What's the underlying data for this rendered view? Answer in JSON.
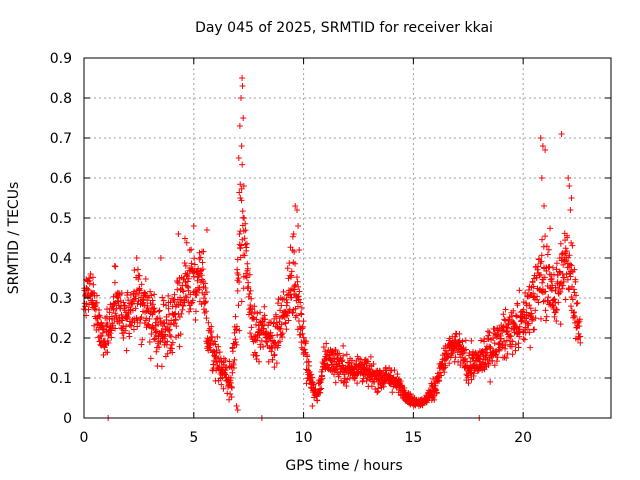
{
  "chart_data": {
    "type": "scatter",
    "title": "Day 045 of 2025, SRMTID for receiver kkai",
    "xlabel": "GPS time / hours",
    "ylabel": "SRMTID / TECUs",
    "xlim": [
      0,
      24
    ],
    "ylim": [
      0,
      0.9
    ],
    "xticks": [
      0,
      5,
      10,
      15,
      20
    ],
    "yticks": [
      0,
      0.1,
      0.2,
      0.3,
      0.4,
      0.5,
      0.6,
      0.7,
      0.8,
      0.9
    ],
    "xtick_labels": [
      "0",
      "5",
      "10",
      "15",
      "20"
    ],
    "ytick_labels": [
      "0",
      "0.1",
      "0.2",
      "0.3",
      "0.4",
      "0.5",
      "0.6",
      "0.7",
      "0.8",
      "0.9"
    ],
    "grid": true,
    "marker": "plus",
    "color": "#ff0000",
    "trend": [
      [
        0.0,
        0.3,
        0.04
      ],
      [
        0.3,
        0.32,
        0.05
      ],
      [
        0.6,
        0.26,
        0.06
      ],
      [
        0.9,
        0.19,
        0.04
      ],
      [
        1.2,
        0.24,
        0.06
      ],
      [
        1.5,
        0.3,
        0.07
      ],
      [
        1.8,
        0.24,
        0.07
      ],
      [
        2.1,
        0.26,
        0.07
      ],
      [
        2.4,
        0.3,
        0.08
      ],
      [
        2.8,
        0.28,
        0.08
      ],
      [
        3.2,
        0.22,
        0.07
      ],
      [
        3.6,
        0.22,
        0.07
      ],
      [
        4.0,
        0.24,
        0.08
      ],
      [
        4.3,
        0.3,
        0.1
      ],
      [
        4.7,
        0.32,
        0.09
      ],
      [
        5.0,
        0.34,
        0.1
      ],
      [
        5.4,
        0.34,
        0.09
      ],
      [
        5.7,
        0.2,
        0.07
      ],
      [
        6.0,
        0.15,
        0.05
      ],
      [
        6.3,
        0.12,
        0.04
      ],
      [
        6.6,
        0.1,
        0.05
      ],
      [
        6.9,
        0.16,
        0.08
      ],
      [
        7.1,
        0.5,
        0.2
      ],
      [
        7.3,
        0.42,
        0.15
      ],
      [
        7.5,
        0.3,
        0.1
      ],
      [
        7.8,
        0.2,
        0.06
      ],
      [
        8.2,
        0.22,
        0.06
      ],
      [
        8.6,
        0.2,
        0.06
      ],
      [
        9.0,
        0.24,
        0.07
      ],
      [
        9.3,
        0.3,
        0.08
      ],
      [
        9.6,
        0.36,
        0.12
      ],
      [
        9.9,
        0.24,
        0.08
      ],
      [
        10.2,
        0.12,
        0.04
      ],
      [
        10.6,
        0.05,
        0.02
      ],
      [
        11.0,
        0.15,
        0.04
      ],
      [
        11.5,
        0.14,
        0.04
      ],
      [
        12.0,
        0.12,
        0.04
      ],
      [
        12.5,
        0.13,
        0.04
      ],
      [
        13.0,
        0.11,
        0.03
      ],
      [
        13.5,
        0.1,
        0.03
      ],
      [
        14.0,
        0.1,
        0.03
      ],
      [
        14.5,
        0.07,
        0.02
      ],
      [
        15.0,
        0.04,
        0.01
      ],
      [
        15.5,
        0.04,
        0.01
      ],
      [
        16.0,
        0.08,
        0.03
      ],
      [
        16.5,
        0.16,
        0.04
      ],
      [
        17.0,
        0.18,
        0.04
      ],
      [
        17.5,
        0.13,
        0.04
      ],
      [
        18.0,
        0.14,
        0.04
      ],
      [
        18.5,
        0.17,
        0.05
      ],
      [
        19.0,
        0.2,
        0.05
      ],
      [
        19.5,
        0.22,
        0.06
      ],
      [
        20.0,
        0.24,
        0.06
      ],
      [
        20.3,
        0.28,
        0.08
      ],
      [
        20.6,
        0.32,
        0.09
      ],
      [
        20.9,
        0.36,
        0.1
      ],
      [
        21.2,
        0.34,
        0.1
      ],
      [
        21.5,
        0.3,
        0.1
      ],
      [
        21.8,
        0.36,
        0.1
      ],
      [
        22.1,
        0.4,
        0.12
      ],
      [
        22.4,
        0.28,
        0.08
      ],
      [
        22.6,
        0.2,
        0.05
      ]
    ],
    "spikes": [
      [
        7.05,
        0.65
      ],
      [
        7.1,
        0.73
      ],
      [
        7.15,
        0.8
      ],
      [
        7.2,
        0.85
      ],
      [
        7.22,
        0.83
      ],
      [
        7.25,
        0.75
      ],
      [
        7.18,
        0.68
      ],
      [
        7.28,
        0.58
      ],
      [
        7.12,
        0.55
      ],
      [
        7.08,
        0.46
      ],
      [
        9.55,
        0.46
      ],
      [
        9.62,
        0.53
      ],
      [
        9.7,
        0.52
      ],
      [
        9.75,
        0.48
      ],
      [
        9.8,
        0.42
      ],
      [
        20.8,
        0.7
      ],
      [
        20.9,
        0.68
      ],
      [
        20.85,
        0.6
      ],
      [
        21.0,
        0.67
      ],
      [
        20.95,
        0.53
      ],
      [
        21.75,
        0.71
      ],
      [
        22.05,
        0.6
      ],
      [
        22.1,
        0.58
      ],
      [
        22.15,
        0.52
      ],
      [
        22.2,
        0.55
      ],
      [
        5.0,
        0.48
      ],
      [
        4.3,
        0.46
      ],
      [
        5.6,
        0.47
      ],
      [
        3.5,
        0.4
      ],
      [
        2.4,
        0.4
      ],
      [
        1.4,
        0.38
      ],
      [
        0.3,
        0.36
      ],
      [
        6.95,
        0.03
      ],
      [
        7.0,
        0.02
      ],
      [
        10.4,
        0.03
      ],
      [
        8.1,
        0.0
      ],
      [
        1.1,
        0.0
      ],
      [
        18.0,
        0.0
      ]
    ],
    "samples_per_hour": 90
  }
}
